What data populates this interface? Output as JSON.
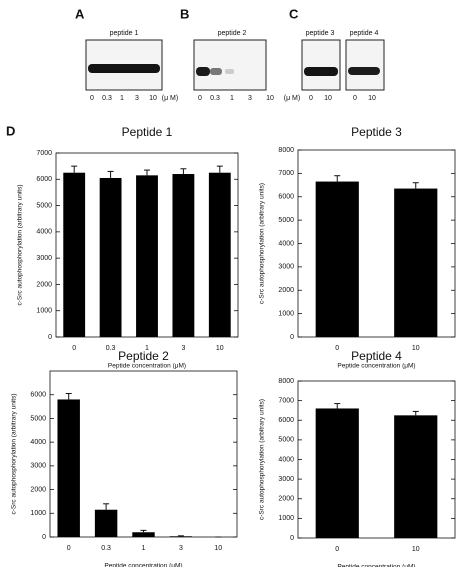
{
  "panel_labels": [
    "A",
    "B",
    "C",
    "D"
  ],
  "blots": [
    {
      "title": "peptide 1",
      "lanes": [
        "0",
        "0.3",
        "1",
        "3",
        "10"
      ],
      "unit": "(μ M)"
    },
    {
      "title": "peptide 2",
      "lanes": [
        "0",
        "0.3",
        "1",
        "3",
        "10"
      ],
      "unit": "(μ M)"
    },
    {
      "title": "peptide 3",
      "lanes": [
        "0",
        "10"
      ]
    },
    {
      "title": "peptide 4",
      "lanes": [
        "0",
        "10"
      ]
    }
  ],
  "chart_data": [
    {
      "type": "bar",
      "title": "Peptide 1",
      "ylabel": "c-Src autophosphorylation (arbitrary units)",
      "xlabel": "Peptide concentration (μM)",
      "categories": [
        "0",
        "0.3",
        "1",
        "3",
        "10"
      ],
      "values": [
        6250,
        6050,
        6150,
        6200,
        6250
      ],
      "errors": [
        250,
        250,
        200,
        200,
        250
      ],
      "color": "#000000",
      "ylim": [
        0,
        7000
      ],
      "yticks": [
        0,
        1000,
        2000,
        3000,
        4000,
        5000,
        6000,
        7000
      ]
    },
    {
      "type": "bar",
      "title": "Peptide 3",
      "ylabel": "c-Src autophosphorylation (arbitrary units)",
      "xlabel": "Peptide concentration (μM)",
      "categories": [
        "0",
        "10"
      ],
      "values": [
        6650,
        6350
      ],
      "errors": [
        250,
        250
      ],
      "color": "#000000",
      "ylim": [
        0,
        8000
      ],
      "yticks": [
        0,
        1000,
        2000,
        3000,
        4000,
        5000,
        6000,
        7000,
        8000
      ]
    },
    {
      "type": "bar",
      "title": "Peptide 2",
      "ylabel": "c-Src autophosphorylation (arbitrary units)",
      "xlabel": "Peptide concentration (μM)",
      "categories": [
        "0",
        "0.3",
        "1",
        "3",
        "10"
      ],
      "values": [
        5800,
        1150,
        200,
        30,
        0
      ],
      "errors": [
        250,
        250,
        80,
        20,
        0
      ],
      "color": "#000000",
      "ylim": [
        0,
        7000
      ],
      "yticks": [
        0,
        1000,
        2000,
        3000,
        4000,
        5000,
        6000
      ]
    },
    {
      "type": "bar",
      "title": "Peptide 4",
      "ylabel": "c-Src autophosphorylation (arbitrary units)",
      "xlabel": "Peptide concentration (μM)",
      "categories": [
        "0",
        "10"
      ],
      "values": [
        6600,
        6250
      ],
      "errors": [
        250,
        200
      ],
      "color": "#000000",
      "ylim": [
        0,
        8000
      ],
      "yticks": [
        0,
        1000,
        2000,
        3000,
        4000,
        5000,
        6000,
        7000,
        8000
      ]
    }
  ]
}
